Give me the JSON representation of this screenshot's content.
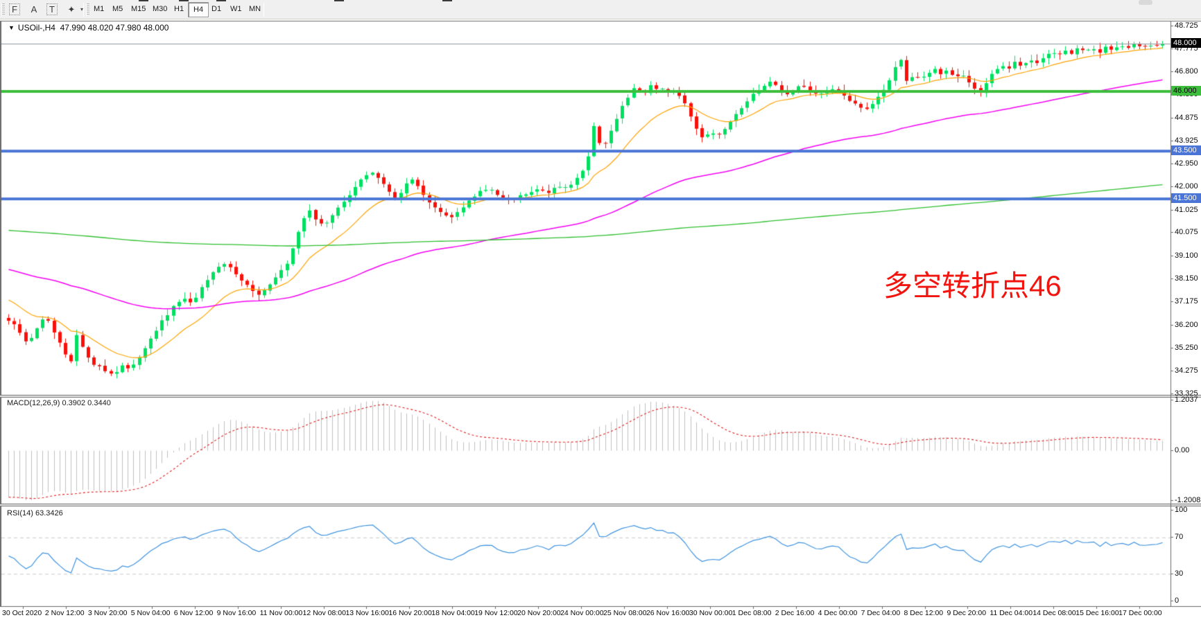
{
  "toolbar": {
    "tools": [
      {
        "name": "fibonacci-tool",
        "glyph": "F",
        "boxed": true
      },
      {
        "name": "text-tool",
        "glyph": "A",
        "boxed": false
      },
      {
        "name": "text-label-tool",
        "glyph": "T",
        "boxed": true
      },
      {
        "name": "arrow-objects-tool",
        "glyph": "✦",
        "boxed": false
      }
    ],
    "dropdown_caret": "▾",
    "timeframes": [
      "M1",
      "M5",
      "M15",
      "M30",
      "H1",
      "H4",
      "D1",
      "W1",
      "MN"
    ],
    "selected_timeframe": "H4"
  },
  "chart_header": {
    "dropdown_glyph": "▼",
    "symbol": "USOil-,H4",
    "ohlc": "47.990 48.020 47.980 48.000"
  },
  "annotation": {
    "text": "多空转折点46",
    "color": "#f2150f"
  },
  "chart_data": {
    "type": "candlestick",
    "symbol": "USOil",
    "timeframe": "H4",
    "title": "USOil-,H4",
    "ohlc_readout": {
      "open": "47.990",
      "high": "48.020",
      "low": "47.980",
      "close": "48.000"
    },
    "bars": 204,
    "close_keypoints": [
      [
        0.0,
        36.4
      ],
      [
        0.008,
        36.05
      ],
      [
        0.016,
        35.4
      ],
      [
        0.025,
        36.15
      ],
      [
        0.032,
        36.55
      ],
      [
        0.04,
        35.85
      ],
      [
        0.048,
        35.05
      ],
      [
        0.054,
        34.6
      ],
      [
        0.058,
        35.9
      ],
      [
        0.065,
        35.15
      ],
      [
        0.073,
        34.65
      ],
      [
        0.082,
        34.35
      ],
      [
        0.091,
        34.15
      ],
      [
        0.098,
        34.55
      ],
      [
        0.106,
        34.3
      ],
      [
        0.115,
        35.05
      ],
      [
        0.124,
        35.75
      ],
      [
        0.133,
        36.35
      ],
      [
        0.142,
        36.9
      ],
      [
        0.15,
        37.35
      ],
      [
        0.158,
        37.1
      ],
      [
        0.166,
        37.65
      ],
      [
        0.174,
        38.2
      ],
      [
        0.181,
        38.55
      ],
      [
        0.188,
        38.78
      ],
      [
        0.196,
        38.45
      ],
      [
        0.204,
        38.05
      ],
      [
        0.212,
        37.6
      ],
      [
        0.219,
        37.42
      ],
      [
        0.226,
        37.95
      ],
      [
        0.233,
        38.35
      ],
      [
        0.24,
        38.65
      ],
      [
        0.247,
        39.5
      ],
      [
        0.254,
        40.45
      ],
      [
        0.261,
        41.05
      ],
      [
        0.268,
        40.55
      ],
      [
        0.275,
        40.4
      ],
      [
        0.283,
        40.95
      ],
      [
        0.291,
        41.45
      ],
      [
        0.299,
        41.9
      ],
      [
        0.307,
        42.35
      ],
      [
        0.314,
        42.68
      ],
      [
        0.321,
        42.35
      ],
      [
        0.328,
        41.9
      ],
      [
        0.336,
        41.55
      ],
      [
        0.344,
        42.05
      ],
      [
        0.351,
        42.35
      ],
      [
        0.359,
        41.75
      ],
      [
        0.367,
        41.2
      ],
      [
        0.375,
        40.9
      ],
      [
        0.383,
        40.65
      ],
      [
        0.391,
        41.05
      ],
      [
        0.4,
        41.45
      ],
      [
        0.409,
        41.8
      ],
      [
        0.418,
        41.9
      ],
      [
        0.428,
        41.6
      ],
      [
        0.438,
        41.5
      ],
      [
        0.448,
        41.75
      ],
      [
        0.458,
        41.95
      ],
      [
        0.468,
        41.8
      ],
      [
        0.478,
        42.0
      ],
      [
        0.488,
        42.1
      ],
      [
        0.496,
        42.5
      ],
      [
        0.502,
        43.2
      ],
      [
        0.506,
        44.3
      ],
      [
        0.509,
        44.85
      ],
      [
        0.512,
        43.9
      ],
      [
        0.515,
        43.55
      ],
      [
        0.519,
        44.1
      ],
      [
        0.524,
        44.5
      ],
      [
        0.529,
        45.1
      ],
      [
        0.534,
        45.5
      ],
      [
        0.539,
        45.9
      ],
      [
        0.544,
        46.2
      ],
      [
        0.549,
        45.8
      ],
      [
        0.553,
        46.1
      ],
      [
        0.558,
        46.3
      ],
      [
        0.563,
        45.95
      ],
      [
        0.568,
        46.15
      ],
      [
        0.573,
        45.85
      ],
      [
        0.578,
        46.05
      ],
      [
        0.583,
        45.7
      ],
      [
        0.588,
        45.3
      ],
      [
        0.593,
        44.75
      ],
      [
        0.598,
        44.3
      ],
      [
        0.603,
        44.0
      ],
      [
        0.609,
        44.35
      ],
      [
        0.615,
        44.15
      ],
      [
        0.621,
        44.5
      ],
      [
        0.628,
        44.9
      ],
      [
        0.635,
        45.3
      ],
      [
        0.642,
        45.7
      ],
      [
        0.649,
        46.0
      ],
      [
        0.656,
        46.25
      ],
      [
        0.663,
        46.45
      ],
      [
        0.669,
        46.1
      ],
      [
        0.675,
        45.85
      ],
      [
        0.681,
        46.1
      ],
      [
        0.687,
        46.3
      ],
      [
        0.694,
        46.0
      ],
      [
        0.701,
        45.8
      ],
      [
        0.708,
        46.0
      ],
      [
        0.715,
        46.15
      ],
      [
        0.722,
        45.9
      ],
      [
        0.729,
        45.65
      ],
      [
        0.736,
        45.45
      ],
      [
        0.743,
        45.25
      ],
      [
        0.75,
        45.6
      ],
      [
        0.757,
        46.0
      ],
      [
        0.763,
        46.45
      ],
      [
        0.768,
        47.0
      ],
      [
        0.772,
        47.6
      ],
      [
        0.776,
        46.6
      ],
      [
        0.78,
        46.35
      ],
      [
        0.785,
        46.8
      ],
      [
        0.79,
        46.55
      ],
      [
        0.796,
        46.75
      ],
      [
        0.802,
        46.95
      ],
      [
        0.808,
        46.65
      ],
      [
        0.814,
        46.85
      ],
      [
        0.82,
        46.55
      ],
      [
        0.826,
        46.7
      ],
      [
        0.832,
        46.4
      ],
      [
        0.838,
        46.1
      ],
      [
        0.843,
        45.95
      ],
      [
        0.849,
        46.45
      ],
      [
        0.855,
        46.85
      ],
      [
        0.861,
        47.15
      ],
      [
        0.867,
        46.95
      ],
      [
        0.873,
        47.25
      ],
      [
        0.879,
        47.05
      ],
      [
        0.885,
        47.35
      ],
      [
        0.891,
        47.15
      ],
      [
        0.897,
        47.45
      ],
      [
        0.903,
        47.65
      ],
      [
        0.909,
        47.5
      ],
      [
        0.915,
        47.75
      ],
      [
        0.921,
        47.55
      ],
      [
        0.927,
        47.8
      ],
      [
        0.933,
        47.6
      ],
      [
        0.939,
        47.85
      ],
      [
        0.945,
        47.65
      ],
      [
        0.951,
        47.9
      ],
      [
        0.957,
        47.75
      ],
      [
        0.963,
        47.95
      ],
      [
        0.97,
        47.8
      ],
      [
        0.977,
        47.95
      ],
      [
        0.984,
        47.88
      ],
      [
        0.991,
        47.96
      ],
      [
        1.0,
        48.0
      ]
    ],
    "price_axis": {
      "range": [
        33.325,
        48.725
      ],
      "ticks": [
        "48.725",
        "47.775",
        "46.800",
        "45.850",
        "44.875",
        "43.925",
        "42.950",
        "42.000",
        "41.025",
        "40.075",
        "39.100",
        "38.150",
        "37.175",
        "36.200",
        "35.250",
        "34.275",
        "33.325"
      ],
      "badges": [
        {
          "value": "48.000",
          "type": "current"
        },
        {
          "value": "46.000",
          "type": "level-green"
        },
        {
          "value": "43.500",
          "type": "level-blue"
        },
        {
          "value": "41.500",
          "type": "level-blue"
        }
      ]
    },
    "levels": [
      {
        "value": 46.0,
        "color": "#3cbe3c",
        "width": 4
      },
      {
        "value": 43.5,
        "color": "#4a75d6",
        "width": 4
      },
      {
        "value": 41.5,
        "color": "#4a75d6",
        "width": 4
      }
    ],
    "current_price": {
      "value": 48.0,
      "line_color": "#8d939b"
    },
    "moving_averages": [
      {
        "name": "fast-ma",
        "color": "#ffa200",
        "alpha": 0.13,
        "seed": 37.4,
        "width": 1.2
      },
      {
        "name": "medium-ma",
        "color": "#f400f4",
        "alpha": 0.025,
        "seed": 38.6,
        "width": 1.5
      },
      {
        "name": "slow-ma",
        "color": "#2fbf2f",
        "alpha": 0.004,
        "seed": 40.2,
        "width": 1.3
      }
    ],
    "indicators": [
      {
        "name": "MACD",
        "label": "MACD(12,26,9) 0.3902 0.3440",
        "params": [
          12,
          26,
          9
        ],
        "values": [
          0.3902,
          0.344
        ],
        "axis_ticks": [
          "1.2037",
          "0.00",
          "-1.2008"
        ],
        "axis_values": [
          1.2037,
          0.0,
          -1.2008
        ],
        "histogram_color": "#bfbfbf",
        "signal_color": "#e02020"
      },
      {
        "name": "RSI",
        "label": "RSI(14) 63.3426",
        "period": 14,
        "value": 63.3426,
        "axis_ticks": [
          "100",
          "70",
          "30",
          "0"
        ],
        "axis_values": [
          100,
          70,
          30,
          0
        ],
        "levels": [
          70,
          30
        ],
        "line_color": "#3f93e0",
        "level_color": "#c9c9c9"
      }
    ],
    "time_axis": {
      "labels": [
        "30 Oct 2020",
        "2 Nov 12:00",
        "3 Nov 20:00",
        "5 Nov 04:00",
        "6 Nov 12:00",
        "9 Nov 16:00",
        "11 Nov 00:00",
        "12 Nov 08:00",
        "13 Nov 16:00",
        "16 Nov 20:00",
        "18 Nov 04:00",
        "19 Nov 12:00",
        "20 Nov 20:00",
        "24 Nov 00:00",
        "25 Nov 08:00",
        "26 Nov 16:00",
        "30 Nov 00:00",
        "1 Dec 08:00",
        "2 Dec 16:00",
        "4 Dec 00:00",
        "7 Dec 04:00",
        "8 Dec 12:00",
        "9 Dec 20:00",
        "11 Dec 04:00",
        "14 Dec 08:00",
        "15 Dec 16:00",
        "17 Dec 00:00"
      ]
    },
    "colors": {
      "up": "#00e060",
      "down": "#fa100a",
      "background": "#ffffff",
      "frame": "#6a6a6a",
      "grid": "#c9c9c9"
    }
  }
}
